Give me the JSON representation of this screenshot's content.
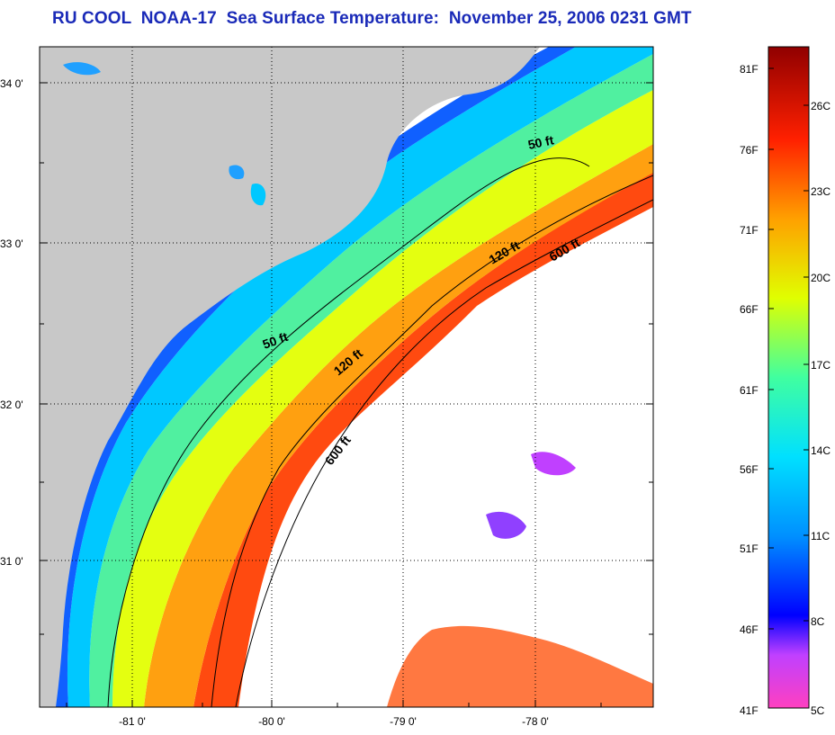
{
  "title": "RU COOL  NOAA-17  Sea Surface Temperature:  November 25, 2006 0231 GMT",
  "lat_labels": [
    "34 0'",
    "33 0'",
    "32 0'",
    "31 0'"
  ],
  "lon_labels": [
    "-81 0'",
    "-80 0'",
    "-79 0'",
    "-78 0'"
  ],
  "contour_labels": [
    "50 ft",
    "50 ft",
    "120 ft",
    "120 ft",
    "600 ft",
    "600 ft"
  ],
  "colorbar": {
    "fahrenheit_labels": [
      "81F",
      "76F",
      "71F",
      "66F",
      "61F",
      "56F",
      "51F",
      "46F",
      "41F"
    ],
    "celsius_labels": [
      "26C",
      "23C",
      "20C",
      "17C",
      "14C",
      "11C",
      "8C",
      "5C"
    ]
  },
  "colors": {
    "land": "#c8c8c8",
    "title": "#1a2ab8",
    "ramp": [
      "#ff40c0",
      "#c040ff",
      "#0000ff",
      "#0090ff",
      "#00e0ff",
      "#40ffa0",
      "#e0ff00",
      "#ffa000",
      "#ff2000",
      "#900000"
    ]
  }
}
